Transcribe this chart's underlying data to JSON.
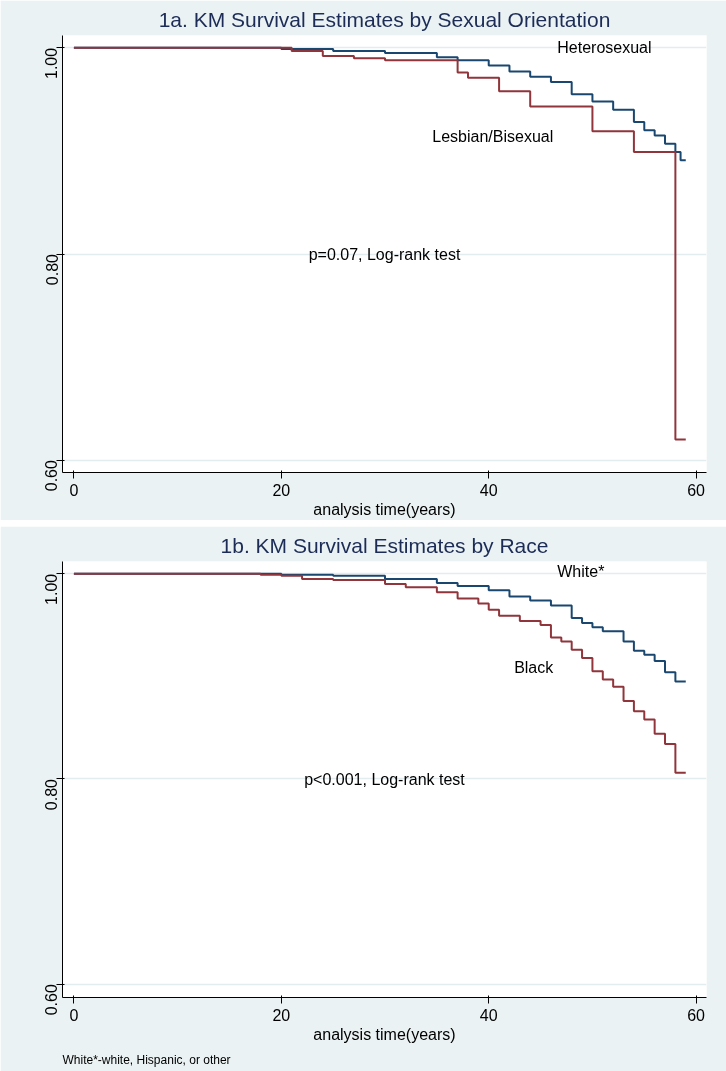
{
  "chart_data": [
    {
      "type": "step",
      "title": "1a. KM Survival Estimates by Sexual Orientation",
      "xlabel": "analysis time(years)",
      "xlim": [
        -1.1,
        61
      ],
      "ylim": [
        0.588,
        1.012
      ],
      "xticks": [
        0,
        20,
        40,
        60
      ],
      "yticks": [
        {
          "value": 0.6,
          "label": "0.60"
        },
        {
          "value": 0.8,
          "label": "0.80"
        },
        {
          "value": 1.0,
          "label": "1.00"
        }
      ],
      "grid": "y",
      "series": [
        {
          "name": "Heterosexual",
          "color": "#1a476f",
          "x": [
            0,
            20,
            25,
            30,
            35,
            37,
            40,
            42,
            44,
            46,
            48,
            50,
            52,
            54,
            55,
            56,
            57,
            58,
            58.5,
            59
          ],
          "values": [
            1.0,
            0.999,
            0.997,
            0.995,
            0.991,
            0.988,
            0.983,
            0.977,
            0.972,
            0.967,
            0.955,
            0.948,
            0.94,
            0.928,
            0.92,
            0.915,
            0.907,
            0.899,
            0.891,
            0.891
          ]
        },
        {
          "name": "Lesbian/Bisexual",
          "color": "#90353b",
          "x": [
            0,
            21,
            24,
            27,
            30,
            37,
            38,
            41,
            44,
            50,
            54,
            58,
            59
          ],
          "values": [
            1.0,
            0.997,
            0.992,
            0.99,
            0.988,
            0.976,
            0.971,
            0.958,
            0.943,
            0.919,
            0.899,
            0.62,
            0.62
          ]
        }
      ],
      "annotations": [
        "p=0.07, Log-rank test"
      ]
    },
    {
      "type": "step",
      "title": "1b. KM Survival Estimates by Race",
      "xlabel": "analysis time(years)",
      "xlim": [
        -1.1,
        61
      ],
      "ylim": [
        0.587,
        1.012
      ],
      "xticks": [
        0,
        20,
        40,
        60
      ],
      "yticks": [
        {
          "value": 0.6,
          "label": "0.60"
        },
        {
          "value": 0.8,
          "label": "0.80"
        },
        {
          "value": 1.0,
          "label": "1.00"
        }
      ],
      "grid": "y",
      "series": [
        {
          "name": "White*",
          "color": "#1a476f",
          "x": [
            0,
            20,
            25,
            30,
            35,
            37,
            40,
            42,
            44,
            46,
            48,
            49,
            50,
            51,
            53,
            54,
            55,
            56,
            57,
            58,
            59
          ],
          "values": [
            1.0,
            0.999,
            0.998,
            0.995,
            0.991,
            0.988,
            0.984,
            0.978,
            0.974,
            0.969,
            0.957,
            0.952,
            0.948,
            0.944,
            0.934,
            0.925,
            0.921,
            0.915,
            0.904,
            0.895,
            0.895
          ]
        },
        {
          "name": "Black",
          "color": "#90353b",
          "x": [
            0,
            18,
            20,
            22,
            25,
            30,
            32,
            35,
            37,
            39,
            40,
            41,
            43,
            45,
            46,
            47,
            48,
            49,
            50,
            51,
            52,
            53,
            54,
            55,
            56,
            57,
            58,
            59
          ],
          "values": [
            1.0,
            0.999,
            0.998,
            0.995,
            0.994,
            0.99,
            0.987,
            0.982,
            0.976,
            0.971,
            0.965,
            0.959,
            0.954,
            0.95,
            0.938,
            0.934,
            0.926,
            0.918,
            0.905,
            0.897,
            0.89,
            0.876,
            0.866,
            0.858,
            0.844,
            0.834,
            0.806,
            0.806
          ]
        }
      ],
      "annotations": [
        "p<0.001, Log-rank test",
        "White*-white, Hispanic, or other"
      ]
    }
  ]
}
